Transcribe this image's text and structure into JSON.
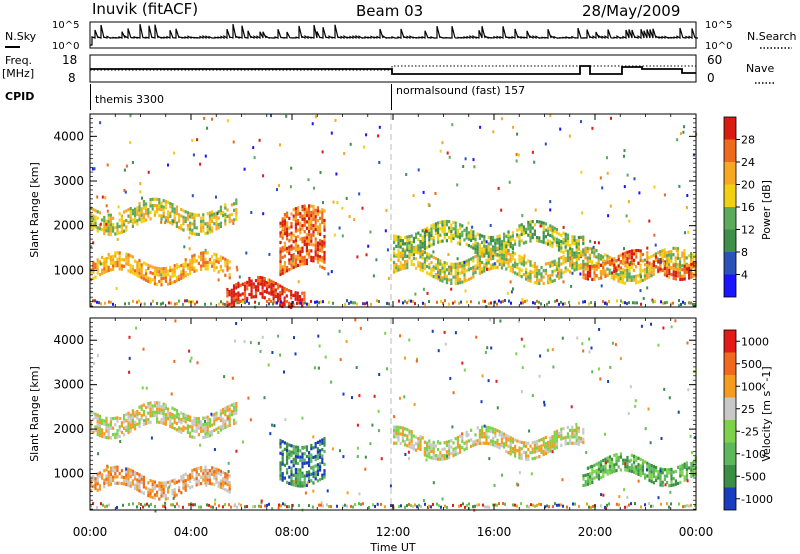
{
  "header": {
    "station": "Inuvik (fitACF)",
    "beam": "Beam 03",
    "date": "28/May/2009"
  },
  "noise_panel": {
    "left_label": "N.Sky",
    "right_label": "N.Search",
    "left_ticks": [
      "10^5",
      "10^0"
    ],
    "right_ticks": [
      "10^5",
      "10^0"
    ]
  },
  "freq_panel": {
    "left_label_line1": "Freq.",
    "left_label_line2": "[MHz]",
    "right_label": "Nave",
    "left_ticks": [
      "18",
      "8"
    ],
    "right_ticks": [
      "60",
      "0"
    ]
  },
  "cpid_panel": {
    "label": "CPID",
    "segments": [
      {
        "name": "themis 3300",
        "start_hour": 0
      },
      {
        "name": "normalsound (fast) 157",
        "start_hour": 12
      }
    ]
  },
  "time_axis": {
    "title": "Time UT",
    "ticks": [
      "00:00",
      "04:00",
      "08:00",
      "12:00",
      "16:00",
      "20:00",
      "00:00"
    ],
    "tick_hours": [
      0,
      4,
      8,
      12,
      16,
      20,
      24
    ]
  },
  "chart_data": [
    {
      "type": "heatmap",
      "title": "",
      "xlabel": "Time UT",
      "ylabel": "Slant Range [km]",
      "xlim": [
        0,
        24
      ],
      "ylim": [
        180,
        4500
      ],
      "yticks": [
        1000,
        2000,
        3000,
        4000
      ],
      "colorbar": {
        "label": "Power [dB]",
        "ticks": [
          "4",
          "8",
          "12",
          "16",
          "20",
          "24",
          "28"
        ],
        "colors": [
          "#1a14ff",
          "#2a52b8",
          "#3d8f4a",
          "#5bab5a",
          "#f2d011",
          "#f7a823",
          "#ef6a1c",
          "#d81c12"
        ]
      },
      "echo_bands": [
        {
          "t0": 0.0,
          "t1": 5.8,
          "r0": 2000,
          "r1": 2450,
          "level": 4
        },
        {
          "t0": 0.0,
          "t1": 5.5,
          "r0": 850,
          "r1": 1250,
          "level": 5
        },
        {
          "t0": 5.4,
          "t1": 8.5,
          "r0": 200,
          "r1": 700,
          "level": 7
        },
        {
          "t0": 7.5,
          "t1": 9.3,
          "r0": 1000,
          "r1": 2300,
          "level": 6
        },
        {
          "t0": 12.0,
          "t1": 19.5,
          "r0": 1500,
          "r1": 1950,
          "level": 3
        },
        {
          "t0": 12.0,
          "t1": 24.0,
          "r0": 900,
          "r1": 1350,
          "level": 4
        },
        {
          "t0": 19.5,
          "t1": 24.0,
          "r0": 950,
          "r1": 1300,
          "level": 6
        }
      ]
    },
    {
      "type": "heatmap",
      "title": "",
      "xlabel": "Time UT",
      "ylabel": "Slant Range [km]",
      "xlim": [
        0,
        24
      ],
      "ylim": [
        180,
        4500
      ],
      "yticks": [
        1000,
        2000,
        3000,
        4000
      ],
      "colorbar": {
        "label": "Velocity [m s^-1]",
        "ticks": [
          "1000",
          "500",
          "100",
          "25",
          "-25",
          "-100",
          "-500",
          "-1000"
        ],
        "colors": [
          "#1a3cbf",
          "#3b8f44",
          "#5cb85a",
          "#7cd24a",
          "#c8c8c8",
          "#f59b1f",
          "#f1691d",
          "#e41b16"
        ]
      },
      "echo_bands": [
        {
          "t0": 0.0,
          "t1": 5.8,
          "r0": 2000,
          "r1": 2450,
          "level": 4
        },
        {
          "t0": 0.0,
          "t1": 5.5,
          "r0": 600,
          "r1": 1000,
          "level": 5
        },
        {
          "t0": 7.5,
          "t1": 9.3,
          "r0": 900,
          "r1": 1800,
          "level": 1
        },
        {
          "t0": 12.0,
          "t1": 19.5,
          "r0": 1500,
          "r1": 1900,
          "level": 4
        },
        {
          "t0": 19.5,
          "t1": 24.0,
          "r0": 900,
          "r1": 1300,
          "level": 2
        }
      ]
    }
  ]
}
